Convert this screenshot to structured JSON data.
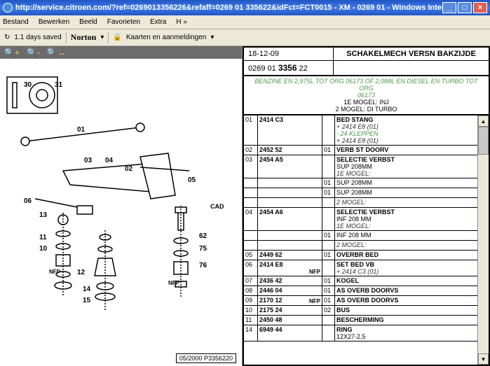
{
  "window": {
    "title": "http://service.citroen.com/?ref=0269013356226&refaff=0269 01 335622&idFct=FCT0015 - XM - 0269 01 - Windows Internet Explorer",
    "minimize": "_",
    "maximize": "□",
    "close": "×"
  },
  "menu": {
    "bestand": "Bestand",
    "bewerken": "Bewerken",
    "beeld": "Beeld",
    "favorieten": "Favorieten",
    "extra": "Extra",
    "help": "H »"
  },
  "topbar": {
    "days_saved": "1.1 days saved",
    "norton": "Norton",
    "kaarten": "Kaarten en aanmeldingen"
  },
  "header": {
    "date": "18-12-09",
    "partno_prefix": "0269 01",
    "partno_bold": "3356",
    "partno_suffix": "22",
    "title": "SCHAKELMECH VERSN BAKZIJDE"
  },
  "subheader": {
    "green1": "BENZINE EN 2,975L TOT ORG 06173 OF 2,088L EN DIESEL EN TURBO TOT ORG",
    "green2": "06173",
    "line1": "1E MOGEL: INJ",
    "line2": "2 MOGEL: DI TURBO"
  },
  "diagram": {
    "callouts": [
      "30",
      "31",
      "03",
      "04",
      "01",
      "02",
      "05",
      "06",
      "13",
      "11",
      "10",
      "12",
      "14",
      "15",
      "62",
      "75",
      "76",
      "CAD",
      "NFP",
      "NFP"
    ],
    "footer_date": "05/2000",
    "footer_ref": "P3356220"
  },
  "rows": [
    {
      "num": "01",
      "part": "2414 C3",
      "q": "",
      "descs": [
        {
          "t": "BED STANG",
          "c": "bold"
        },
        {
          "t": "+ 2414 E8 (01)",
          "c": "it"
        },
        {
          "t": "- 24 KLEPPEN",
          "c": "green"
        },
        {
          "t": "+ 2414 E8 (01)",
          "c": "it"
        }
      ]
    },
    {
      "num": "02",
      "part": "2452 52",
      "q": "01",
      "descs": [
        {
          "t": "VERB ST DOORV",
          "c": "bold"
        }
      ]
    },
    {
      "num": "03",
      "part": "2454 A5",
      "q": "",
      "descs": [
        {
          "t": "SELECTIE VERBST",
          "c": "bold"
        },
        {
          "t": "SUP 208MM",
          "c": ""
        },
        {
          "t": "1E MOGEL:",
          "c": "it"
        }
      ],
      "sub": [
        {
          "q": "01",
          "t": "SUP 208MM"
        },
        {
          "q": "01",
          "t": "SUP 208MM"
        },
        {
          "q": "",
          "t": "2 MOGEL:",
          "c": "it"
        }
      ]
    },
    {
      "num": "04",
      "part": "2454 A6",
      "q": "",
      "descs": [
        {
          "t": "SELECTIE VERBST",
          "c": "bold"
        },
        {
          "t": "INF 208 MM",
          "c": ""
        },
        {
          "t": "1E MOGEL:",
          "c": "it"
        }
      ],
      "sub": [
        {
          "q": "01",
          "t": "INF 208 MM"
        },
        {
          "q": "",
          "t": "2 MOGEL:",
          "c": "it"
        }
      ]
    },
    {
      "num": "05",
      "part": "2449 62",
      "q": "01",
      "descs": [
        {
          "t": "OVERBR BED",
          "c": "bold"
        }
      ]
    },
    {
      "num": "06",
      "part": "2414 E8",
      "q": "",
      "nfp": "NFP",
      "descs": [
        {
          "t": "SET BED VB",
          "c": "bold"
        },
        {
          "t": "+ 2414 C3 (01)",
          "c": "it"
        }
      ]
    },
    {
      "num": "07",
      "part": "2436 42",
      "q": "01",
      "descs": [
        {
          "t": "KOGEL",
          "c": "bold"
        }
      ]
    },
    {
      "num": "08",
      "part": "2446 04",
      "q": "01",
      "descs": [
        {
          "t": "AS OVERB DOORVS",
          "c": "bold"
        }
      ]
    },
    {
      "num": "09",
      "part": "2170 12",
      "q": "01",
      "nfp": "NFP",
      "descs": [
        {
          "t": "AS OVERB DOORVS",
          "c": "bold"
        }
      ]
    },
    {
      "num": "10",
      "part": "2175 24",
      "q": "02",
      "descs": [
        {
          "t": "BUS",
          "c": "bold"
        }
      ]
    },
    {
      "num": "11",
      "part": "2450 48",
      "q": "",
      "descs": [
        {
          "t": "BESCHERMING",
          "c": "bold"
        }
      ]
    },
    {
      "num": "14",
      "part": "6949 44",
      "q": "",
      "descs": [
        {
          "t": "RING",
          "c": "bold"
        },
        {
          "t": "12X27-2,5",
          "c": ""
        }
      ]
    }
  ]
}
